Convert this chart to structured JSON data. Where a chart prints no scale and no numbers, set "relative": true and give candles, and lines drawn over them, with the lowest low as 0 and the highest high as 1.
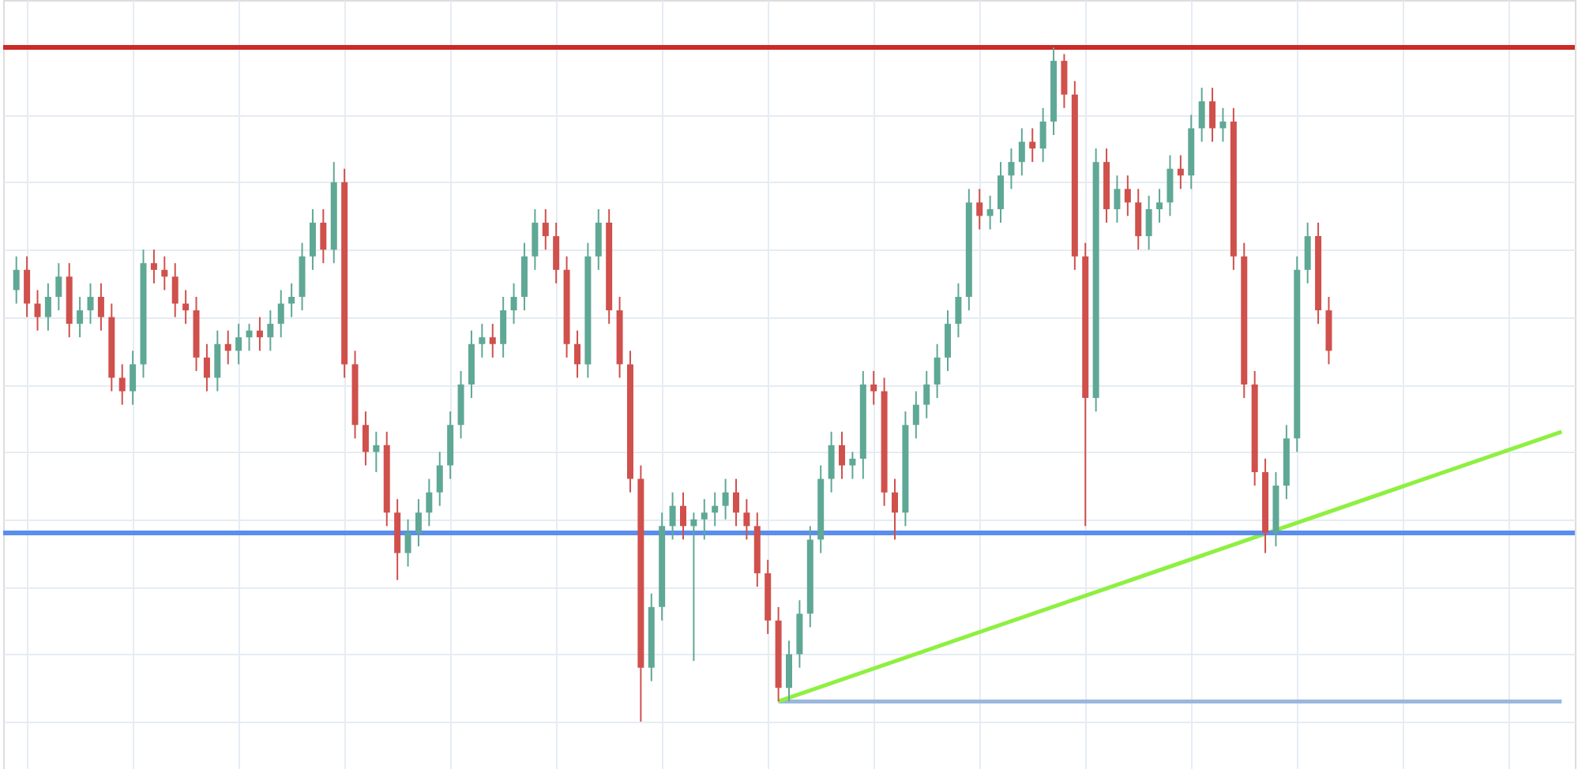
{
  "chart_data": {
    "type": "candlestick",
    "relative": true,
    "grid": true,
    "tick_labels": false,
    "colors": [
      "#5fa896",
      "#d0504c",
      "#d0504c",
      "#5fa896",
      "#5fa896",
      "#d0504c",
      "#5fa896",
      "#5fa896",
      "#d0504c",
      "#d0504c",
      "#d0504c",
      "#5fa896",
      "#5fa896",
      "#d0504c",
      "#d0504c",
      "#d0504c",
      "#d0504c",
      "#d0504c",
      "#d0504c",
      "#5fa896",
      "#d0504c",
      "#5fa896",
      "#5fa896",
      "#d0504c",
      "#5fa896",
      "#5fa896",
      "#5fa896",
      "#5fa896",
      "#5fa896",
      "#d0504c",
      "#5fa896",
      "#d0504c",
      "#d0504c",
      "#d0504c",
      "#5fa896",
      "#d0504c",
      "#d0504c",
      "#5fa896",
      "#5fa896",
      "#5fa896",
      "#5fa896",
      "#5fa896",
      "#5fa896",
      "#5fa896",
      "#5fa896",
      "#d0504c",
      "#5fa896",
      "#5fa896",
      "#5fa896",
      "#5fa896",
      "#d0504c",
      "#d0504c",
      "#d0504c",
      "#d0504c",
      "#5fa896",
      "#5fa896",
      "#d0504c",
      "#d0504c",
      "#d0504c",
      "#d0504c",
      "#5fa896",
      "#5fa896",
      "#5fa896",
      "#d0504c",
      "#5fa896",
      "#5fa896",
      "#5fa896",
      "#5fa896",
      "#d0504c",
      "#d0504c",
      "#d0504c",
      "#d0504c",
      "#d0504c",
      "#5fa896",
      "#5fa896",
      "#5fa896",
      "#5fa896",
      "#5fa896",
      "#d0504c",
      "#5fa896",
      "#5fa896",
      "#d0504c",
      "#d0504c",
      "#d0504c",
      "#5fa896",
      "#5fa896",
      "#5fa896",
      "#5fa896",
      "#5fa896",
      "#5fa896",
      "#5fa896",
      "#d0504c",
      "#5fa896",
      "#5fa896",
      "#5fa896",
      "#5fa896",
      "#d0504c",
      "#5fa896",
      "#5fa896",
      "#d0504c",
      "#d0504c",
      "#d0504c",
      "#5fa896",
      "#d0504c",
      "#5fa896",
      "#d0504c",
      "#d0504c",
      "#5fa896",
      "#5fa896",
      "#5fa896",
      "#d0504c",
      "#5fa896",
      "#5fa896",
      "#d0504c",
      "#5fa896",
      "#d0504c",
      "#d0504c",
      "#d0504c",
      "#d0504c",
      "#5fa896",
      "#5fa896",
      "#5fa896",
      "#5fa896",
      "#d0504c",
      "#d0504c",
      null,
      null,
      null,
      null,
      null,
      null,
      null,
      null,
      null,
      null,
      null,
      null,
      null,
      null,
      null,
      null,
      null,
      null,
      null,
      null,
      null,
      null
    ],
    "categories": [
      null,
      null,
      null,
      null,
      null,
      null,
      null,
      null,
      null,
      null,
      null,
      null,
      null,
      null,
      null,
      null,
      null,
      null,
      null,
      null,
      null,
      null,
      null,
      null,
      null,
      null,
      null,
      null,
      null,
      null,
      null,
      null,
      null,
      null,
      null,
      null,
      null,
      null,
      null,
      null,
      null,
      null,
      null,
      null,
      null,
      null,
      null,
      null,
      null,
      null,
      null,
      null,
      null,
      null,
      null,
      null,
      null,
      null,
      null,
      null,
      null,
      null,
      null,
      null,
      null,
      null,
      null,
      null,
      null,
      null,
      null,
      null,
      null,
      null,
      null,
      null,
      null,
      null,
      null,
      null,
      null,
      null,
      null,
      null,
      null,
      null,
      null,
      null,
      null,
      null,
      null,
      null,
      null,
      null,
      null,
      null,
      null,
      null,
      null,
      null,
      null,
      null,
      null,
      null,
      null,
      null,
      null,
      null,
      null,
      null,
      null,
      null,
      null,
      null,
      null,
      null,
      null,
      null,
      null,
      null,
      null,
      null,
      null,
      null,
      null,
      null,
      null,
      null,
      null,
      null,
      null,
      null,
      null,
      null,
      null,
      null,
      null,
      null,
      null,
      null,
      null,
      null,
      null,
      null,
      null,
      null,
      null
    ],
    "ohlc": [
      [
        0.64,
        0.69,
        0.62,
        0.67
      ],
      [
        0.67,
        0.69,
        0.6,
        0.62
      ],
      [
        0.62,
        0.64,
        0.58,
        0.6
      ],
      [
        0.6,
        0.65,
        0.58,
        0.63
      ],
      [
        0.63,
        0.68,
        0.61,
        0.66
      ],
      [
        0.66,
        0.68,
        0.57,
        0.59
      ],
      [
        0.59,
        0.63,
        0.57,
        0.61
      ],
      [
        0.61,
        0.65,
        0.59,
        0.63
      ],
      [
        0.63,
        0.65,
        0.58,
        0.6
      ],
      [
        0.6,
        0.62,
        0.49,
        0.51
      ],
      [
        0.51,
        0.53,
        0.47,
        0.49
      ],
      [
        0.49,
        0.55,
        0.47,
        0.53
      ],
      [
        0.53,
        0.7,
        0.51,
        0.68
      ],
      [
        0.68,
        0.7,
        0.65,
        0.67
      ],
      [
        0.67,
        0.69,
        0.64,
        0.66
      ],
      [
        0.66,
        0.68,
        0.6,
        0.62
      ],
      [
        0.62,
        0.64,
        0.59,
        0.61
      ],
      [
        0.61,
        0.63,
        0.52,
        0.54
      ],
      [
        0.54,
        0.56,
        0.49,
        0.51
      ],
      [
        0.51,
        0.58,
        0.49,
        0.56
      ],
      [
        0.56,
        0.58,
        0.53,
        0.55
      ],
      [
        0.55,
        0.59,
        0.53,
        0.57
      ],
      [
        0.57,
        0.59,
        0.55,
        0.58
      ],
      [
        0.58,
        0.6,
        0.55,
        0.57
      ],
      [
        0.57,
        0.61,
        0.55,
        0.59
      ],
      [
        0.59,
        0.64,
        0.57,
        0.62
      ],
      [
        0.62,
        0.65,
        0.6,
        0.63
      ],
      [
        0.63,
        0.71,
        0.61,
        0.69
      ],
      [
        0.69,
        0.76,
        0.67,
        0.74
      ],
      [
        0.74,
        0.76,
        0.68,
        0.7
      ],
      [
        0.7,
        0.83,
        0.68,
        0.8
      ],
      [
        0.8,
        0.82,
        0.51,
        0.53
      ],
      [
        0.53,
        0.55,
        0.42,
        0.44
      ],
      [
        0.44,
        0.46,
        0.38,
        0.4
      ],
      [
        0.4,
        0.43,
        0.37,
        0.41
      ],
      [
        0.41,
        0.43,
        0.29,
        0.31
      ],
      [
        0.31,
        0.33,
        0.21,
        0.25
      ],
      [
        0.25,
        0.3,
        0.23,
        0.28
      ],
      [
        0.28,
        0.33,
        0.26,
        0.31
      ],
      [
        0.31,
        0.36,
        0.29,
        0.34
      ],
      [
        0.34,
        0.4,
        0.32,
        0.38
      ],
      [
        0.38,
        0.46,
        0.36,
        0.44
      ],
      [
        0.44,
        0.52,
        0.42,
        0.5
      ],
      [
        0.5,
        0.58,
        0.48,
        0.56
      ],
      [
        0.56,
        0.59,
        0.54,
        0.57
      ],
      [
        0.57,
        0.59,
        0.54,
        0.56
      ],
      [
        0.56,
        0.63,
        0.54,
        0.61
      ],
      [
        0.61,
        0.65,
        0.59,
        0.63
      ],
      [
        0.63,
        0.71,
        0.61,
        0.69
      ],
      [
        0.69,
        0.76,
        0.67,
        0.74
      ],
      [
        0.74,
        0.76,
        0.7,
        0.72
      ],
      [
        0.72,
        0.74,
        0.65,
        0.67
      ],
      [
        0.67,
        0.69,
        0.54,
        0.56
      ],
      [
        0.56,
        0.58,
        0.51,
        0.53
      ],
      [
        0.53,
        0.71,
        0.51,
        0.69
      ],
      [
        0.69,
        0.76,
        0.67,
        0.74
      ],
      [
        0.74,
        0.76,
        0.59,
        0.61
      ],
      [
        0.61,
        0.63,
        0.51,
        0.53
      ],
      [
        0.53,
        0.55,
        0.34,
        0.36
      ],
      [
        0.36,
        0.38,
        0.0,
        0.08
      ],
      [
        0.08,
        0.19,
        0.06,
        0.17
      ],
      [
        0.17,
        0.31,
        0.15,
        0.29
      ],
      [
        0.29,
        0.34,
        0.27,
        0.32
      ],
      [
        0.32,
        0.34,
        0.27,
        0.29
      ],
      [
        0.29,
        0.31,
        0.09,
        0.3
      ],
      [
        0.3,
        0.33,
        0.27,
        0.31
      ],
      [
        0.31,
        0.34,
        0.29,
        0.32
      ],
      [
        0.32,
        0.36,
        0.3,
        0.34
      ],
      [
        0.34,
        0.36,
        0.29,
        0.31
      ],
      [
        0.31,
        0.33,
        0.27,
        0.29
      ],
      [
        0.29,
        0.31,
        0.2,
        0.22
      ],
      [
        0.22,
        0.24,
        0.13,
        0.15
      ],
      [
        0.15,
        0.17,
        0.03,
        0.05
      ],
      [
        0.05,
        0.12,
        0.03,
        0.1
      ],
      [
        0.1,
        0.18,
        0.08,
        0.16
      ],
      [
        0.16,
        0.29,
        0.14,
        0.27
      ],
      [
        0.27,
        0.38,
        0.25,
        0.36
      ],
      [
        0.36,
        0.43,
        0.34,
        0.41
      ],
      [
        0.41,
        0.43,
        0.36,
        0.38
      ],
      [
        0.38,
        0.4,
        0.36,
        0.39
      ],
      [
        0.39,
        0.52,
        0.36,
        0.5
      ],
      [
        0.5,
        0.52,
        0.47,
        0.49
      ],
      [
        0.49,
        0.51,
        0.32,
        0.34
      ],
      [
        0.34,
        0.36,
        0.27,
        0.31
      ],
      [
        0.31,
        0.46,
        0.29,
        0.44
      ],
      [
        0.44,
        0.49,
        0.42,
        0.47
      ],
      [
        0.47,
        0.52,
        0.45,
        0.5
      ],
      [
        0.5,
        0.56,
        0.48,
        0.54
      ],
      [
        0.54,
        0.61,
        0.52,
        0.59
      ],
      [
        0.59,
        0.65,
        0.57,
        0.63
      ],
      [
        0.63,
        0.79,
        0.61,
        0.77
      ],
      [
        0.77,
        0.79,
        0.73,
        0.75
      ],
      [
        0.75,
        0.78,
        0.73,
        0.76
      ],
      [
        0.76,
        0.83,
        0.74,
        0.81
      ],
      [
        0.81,
        0.85,
        0.79,
        0.83
      ],
      [
        0.83,
        0.88,
        0.81,
        0.86
      ],
      [
        0.86,
        0.88,
        0.83,
        0.85
      ],
      [
        0.85,
        0.91,
        0.83,
        0.89
      ],
      [
        0.89,
        1.0,
        0.87,
        0.98
      ],
      [
        0.98,
        0.99,
        0.91,
        0.93
      ],
      [
        0.93,
        0.95,
        0.67,
        0.69
      ],
      [
        0.69,
        0.71,
        0.29,
        0.48
      ],
      [
        0.48,
        0.85,
        0.46,
        0.83
      ],
      [
        0.83,
        0.85,
        0.74,
        0.76
      ],
      [
        0.76,
        0.81,
        0.74,
        0.79
      ],
      [
        0.79,
        0.81,
        0.75,
        0.77
      ],
      [
        0.77,
        0.79,
        0.7,
        0.72
      ],
      [
        0.72,
        0.78,
        0.7,
        0.76
      ],
      [
        0.76,
        0.79,
        0.74,
        0.77
      ],
      [
        0.77,
        0.84,
        0.75,
        0.82
      ],
      [
        0.82,
        0.84,
        0.79,
        0.81
      ],
      [
        0.81,
        0.9,
        0.79,
        0.88
      ],
      [
        0.88,
        0.94,
        0.86,
        0.92
      ],
      [
        0.92,
        0.94,
        0.86,
        0.88
      ],
      [
        0.88,
        0.91,
        0.86,
        0.89
      ],
      [
        0.89,
        0.91,
        0.67,
        0.69
      ],
      [
        0.69,
        0.71,
        0.48,
        0.5
      ],
      [
        0.5,
        0.52,
        0.35,
        0.37
      ],
      [
        0.37,
        0.39,
        0.25,
        0.28
      ],
      [
        0.28,
        0.37,
        0.26,
        0.35
      ],
      [
        0.35,
        0.44,
        0.33,
        0.42
      ],
      [
        0.42,
        0.69,
        0.4,
        0.67
      ],
      [
        0.67,
        0.74,
        0.65,
        0.72
      ],
      [
        0.72,
        0.74,
        0.59,
        0.61
      ],
      [
        0.61,
        0.63,
        0.53,
        0.55
      ],
      null,
      null,
      null,
      null,
      null,
      null,
      null,
      null,
      null,
      null,
      null,
      null,
      null,
      null,
      null,
      null,
      null,
      null,
      null,
      null,
      null,
      null
    ],
    "series": [
      {
        "type": "line",
        "color": "#9bb7dd",
        "values": [
          null,
          null,
          null,
          null,
          null,
          null,
          null,
          null,
          null,
          null,
          null,
          null,
          null,
          null,
          null,
          null,
          null,
          null,
          null,
          null,
          null,
          null,
          null,
          null,
          null,
          null,
          null,
          null,
          null,
          null,
          null,
          null,
          null,
          null,
          null,
          null,
          null,
          null,
          null,
          null,
          null,
          null,
          null,
          null,
          null,
          null,
          null,
          null,
          null,
          null,
          null,
          null,
          null,
          null,
          null,
          null,
          null,
          null,
          null,
          null,
          null,
          null,
          null,
          null,
          null,
          null,
          null,
          null,
          null,
          null,
          null,
          null,
          0.03,
          null,
          null,
          null,
          null,
          null,
          null,
          null,
          null,
          null,
          null,
          null,
          null,
          null,
          null,
          null,
          null,
          null,
          null,
          null,
          null,
          null,
          null,
          null,
          null,
          null,
          null,
          null,
          null,
          null,
          null,
          null,
          null,
          null,
          null,
          null,
          null,
          null,
          null,
          null,
          null,
          null,
          null,
          null,
          null,
          null,
          null,
          null,
          null,
          null,
          null,
          null,
          null,
          null,
          null,
          null,
          null,
          null,
          null,
          null,
          null,
          null,
          null,
          null,
          null,
          null,
          null,
          null,
          null,
          null,
          null,
          null,
          null,
          null,
          0.03
        ]
      },
      {
        "type": "line",
        "color": "#8ef040",
        "values": [
          null,
          null,
          null,
          null,
          null,
          null,
          null,
          null,
          null,
          null,
          null,
          null,
          null,
          null,
          null,
          null,
          null,
          null,
          null,
          null,
          null,
          null,
          null,
          null,
          null,
          null,
          null,
          null,
          null,
          null,
          null,
          null,
          null,
          null,
          null,
          null,
          null,
          null,
          null,
          null,
          null,
          null,
          null,
          null,
          null,
          null,
          null,
          null,
          null,
          null,
          null,
          null,
          null,
          null,
          null,
          null,
          null,
          null,
          null,
          null,
          null,
          null,
          null,
          null,
          null,
          null,
          null,
          null,
          null,
          null,
          null,
          null,
          0.03,
          null,
          null,
          null,
          null,
          null,
          null,
          null,
          null,
          null,
          null,
          null,
          null,
          null,
          null,
          null,
          null,
          null,
          null,
          null,
          null,
          null,
          null,
          null,
          null,
          null,
          null,
          null,
          null,
          null,
          null,
          null,
          null,
          null,
          null,
          null,
          null,
          null,
          null,
          null,
          null,
          null,
          null,
          null,
          null,
          null,
          null,
          null,
          null,
          null,
          null,
          null,
          null,
          null,
          null,
          null,
          null,
          null,
          null,
          null,
          null,
          null,
          null,
          null,
          null,
          null,
          null,
          null,
          null,
          null,
          null,
          null,
          null,
          null,
          0.43
        ]
      }
    ],
    "ref_lines": [
      {
        "axis": "y",
        "value": 1.0,
        "color": "#cc2a26"
      },
      {
        "axis": "y",
        "value": 0.28,
        "color": "#5b8def"
      }
    ]
  }
}
